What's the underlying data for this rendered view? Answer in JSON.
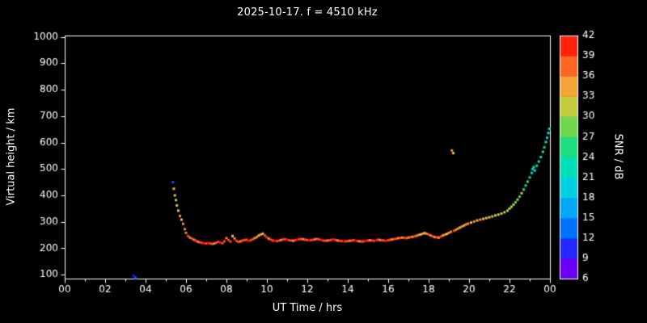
{
  "chart_data": {
    "type": "scatter",
    "title": "2025-10-17. f = 4510 kHz",
    "xlabel": "UT Time / hrs",
    "ylabel": "Virtual height / km",
    "background": "#000000",
    "frame_color": "#ffffff",
    "text_color": "#ffffff",
    "marker_size": 3,
    "xlim": [
      0,
      24
    ],
    "ylim": [
      85,
      1005
    ],
    "x_major_tick_hours": [
      0,
      2,
      4,
      6,
      8,
      10,
      12,
      14,
      16,
      18,
      20,
      22,
      24
    ],
    "x_tick_labels": [
      "00",
      "02",
      "04",
      "06",
      "08",
      "10",
      "12",
      "14",
      "16",
      "18",
      "20",
      "22",
      "00"
    ],
    "y_ticks": [
      100,
      200,
      300,
      400,
      500,
      600,
      700,
      800,
      900,
      1000
    ],
    "grid": false,
    "legend": "none",
    "colorbar": {
      "label": "SNR / dB",
      "min": 6,
      "max": 42,
      "ticks": [
        6,
        9,
        12,
        15,
        18,
        21,
        24,
        27,
        30,
        33,
        36,
        39,
        42
      ],
      "stops": [
        [
          6,
          "#9000f0"
        ],
        [
          9,
          "#4400ff"
        ],
        [
          12,
          "#0050ff"
        ],
        [
          15,
          "#0090ff"
        ],
        [
          18,
          "#00c0f0"
        ],
        [
          21,
          "#00e0d0"
        ],
        [
          24,
          "#00e0a0"
        ],
        [
          27,
          "#40d860"
        ],
        [
          30,
          "#a0d840"
        ],
        [
          33,
          "#e8c040"
        ],
        [
          36,
          "#ff8830"
        ],
        [
          39,
          "#ff4418"
        ],
        [
          42,
          "#ff0000"
        ]
      ]
    },
    "points_format": [
      "time_hours",
      "virtual_height_km",
      "snr_db"
    ],
    "points": [
      [
        3.4,
        95,
        9
      ],
      [
        3.5,
        88,
        12
      ],
      [
        5.35,
        450,
        12
      ],
      [
        5.4,
        425,
        33
      ],
      [
        5.45,
        400,
        33
      ],
      [
        5.5,
        382,
        30
      ],
      [
        5.55,
        362,
        33
      ],
      [
        5.62,
        342,
        33
      ],
      [
        5.7,
        322,
        36
      ],
      [
        5.78,
        308,
        33
      ],
      [
        5.86,
        292,
        36
      ],
      [
        5.94,
        272,
        36
      ],
      [
        6.0,
        258,
        36
      ],
      [
        6.1,
        246,
        39
      ],
      [
        6.2,
        240,
        36
      ],
      [
        6.3,
        236,
        39
      ],
      [
        6.4,
        232,
        36
      ],
      [
        6.5,
        228,
        39
      ],
      [
        6.6,
        224,
        36
      ],
      [
        6.7,
        222,
        39
      ],
      [
        6.8,
        220,
        39
      ],
      [
        6.9,
        219,
        42
      ],
      [
        7.0,
        218,
        39
      ],
      [
        7.1,
        220,
        42
      ],
      [
        7.2,
        218,
        39
      ],
      [
        7.3,
        216,
        39
      ],
      [
        7.4,
        218,
        36
      ],
      [
        7.5,
        221,
        39
      ],
      [
        7.6,
        224,
        39
      ],
      [
        7.7,
        221,
        42
      ],
      [
        7.8,
        219,
        39
      ],
      [
        7.9,
        226,
        39
      ],
      [
        8.0,
        238,
        36
      ],
      [
        8.1,
        231,
        39
      ],
      [
        8.2,
        225,
        39
      ],
      [
        8.3,
        246,
        33
      ],
      [
        8.4,
        237,
        36
      ],
      [
        8.5,
        228,
        39
      ],
      [
        8.6,
        224,
        39
      ],
      [
        8.7,
        226,
        36
      ],
      [
        8.8,
        229,
        39
      ],
      [
        8.9,
        231,
        39
      ],
      [
        9.0,
        232,
        39
      ],
      [
        9.1,
        228,
        42
      ],
      [
        9.2,
        230,
        39
      ],
      [
        9.3,
        234,
        39
      ],
      [
        9.4,
        238,
        36
      ],
      [
        9.5,
        242,
        36
      ],
      [
        9.6,
        248,
        33
      ],
      [
        9.7,
        252,
        36
      ],
      [
        9.8,
        255,
        33
      ],
      [
        9.9,
        248,
        39
      ],
      [
        10.0,
        241,
        39
      ],
      [
        10.1,
        236,
        36
      ],
      [
        10.2,
        232,
        39
      ],
      [
        10.3,
        229,
        39
      ],
      [
        10.4,
        228,
        42
      ],
      [
        10.5,
        227,
        39
      ],
      [
        10.6,
        229,
        39
      ],
      [
        10.7,
        231,
        36
      ],
      [
        10.8,
        233,
        39
      ],
      [
        10.9,
        234,
        39
      ],
      [
        11.0,
        232,
        42
      ],
      [
        11.1,
        230,
        39
      ],
      [
        11.2,
        229,
        39
      ],
      [
        11.3,
        228,
        36
      ],
      [
        11.4,
        230,
        39
      ],
      [
        11.5,
        232,
        42
      ],
      [
        11.6,
        234,
        39
      ],
      [
        11.7,
        235,
        39
      ],
      [
        11.8,
        234,
        36
      ],
      [
        11.9,
        232,
        39
      ],
      [
        12.0,
        231,
        39
      ],
      [
        12.1,
        230,
        42
      ],
      [
        12.2,
        231,
        39
      ],
      [
        12.3,
        232,
        39
      ],
      [
        12.4,
        234,
        36
      ],
      [
        12.5,
        235,
        39
      ],
      [
        12.6,
        233,
        39
      ],
      [
        12.7,
        231,
        42
      ],
      [
        12.8,
        229,
        39
      ],
      [
        12.9,
        228,
        39
      ],
      [
        13.0,
        229,
        36
      ],
      [
        13.1,
        230,
        39
      ],
      [
        13.2,
        232,
        39
      ],
      [
        13.3,
        233,
        42
      ],
      [
        13.4,
        231,
        39
      ],
      [
        13.5,
        229,
        36
      ],
      [
        13.6,
        228,
        39
      ],
      [
        13.7,
        227,
        39
      ],
      [
        13.8,
        226,
        42
      ],
      [
        13.9,
        226,
        39
      ],
      [
        14.0,
        227,
        39
      ],
      [
        14.1,
        228,
        36
      ],
      [
        14.2,
        229,
        39
      ],
      [
        14.3,
        230,
        39
      ],
      [
        14.4,
        228,
        42
      ],
      [
        14.5,
        227,
        39
      ],
      [
        14.6,
        226,
        36
      ],
      [
        14.7,
        225,
        39
      ],
      [
        14.8,
        226,
        39
      ],
      [
        14.9,
        228,
        42
      ],
      [
        15.0,
        229,
        39
      ],
      [
        15.1,
        230,
        36
      ],
      [
        15.2,
        229,
        39
      ],
      [
        15.3,
        228,
        39
      ],
      [
        15.4,
        230,
        42
      ],
      [
        15.5,
        232,
        39
      ],
      [
        15.6,
        231,
        36
      ],
      [
        15.7,
        230,
        39
      ],
      [
        15.8,
        229,
        39
      ],
      [
        15.9,
        228,
        42
      ],
      [
        16.0,
        230,
        39
      ],
      [
        16.1,
        232,
        39
      ],
      [
        16.2,
        233,
        36
      ],
      [
        16.3,
        235,
        39
      ],
      [
        16.4,
        236,
        39
      ],
      [
        16.5,
        238,
        36
      ],
      [
        16.6,
        239,
        39
      ],
      [
        16.7,
        240,
        36
      ],
      [
        16.8,
        239,
        39
      ],
      [
        16.9,
        238,
        39
      ],
      [
        17.0,
        240,
        36
      ],
      [
        17.1,
        242,
        39
      ],
      [
        17.2,
        243,
        36
      ],
      [
        17.3,
        245,
        39
      ],
      [
        17.4,
        247,
        36
      ],
      [
        17.5,
        250,
        36
      ],
      [
        17.6,
        252,
        33
      ],
      [
        17.7,
        255,
        36
      ],
      [
        17.8,
        257,
        33
      ],
      [
        17.9,
        255,
        36
      ],
      [
        18.0,
        252,
        39
      ],
      [
        18.1,
        248,
        36
      ],
      [
        18.2,
        245,
        39
      ],
      [
        18.3,
        242,
        36
      ],
      [
        18.4,
        241,
        39
      ],
      [
        18.5,
        240,
        36
      ],
      [
        18.6,
        244,
        39
      ],
      [
        18.7,
        248,
        36
      ],
      [
        18.8,
        251,
        36
      ],
      [
        18.9,
        254,
        33
      ],
      [
        19.0,
        258,
        36
      ],
      [
        19.1,
        262,
        36
      ],
      [
        19.15,
        570,
        36
      ],
      [
        19.22,
        560,
        33
      ],
      [
        19.25,
        266,
        39
      ],
      [
        19.35,
        270,
        36
      ],
      [
        19.45,
        274,
        36
      ],
      [
        19.55,
        278,
        33
      ],
      [
        19.65,
        282,
        36
      ],
      [
        19.75,
        286,
        33
      ],
      [
        19.85,
        290,
        36
      ],
      [
        19.95,
        293,
        36
      ],
      [
        20.1,
        297,
        33
      ],
      [
        20.25,
        301,
        36
      ],
      [
        20.4,
        305,
        33
      ],
      [
        20.55,
        308,
        36
      ],
      [
        20.7,
        311,
        33
      ],
      [
        20.85,
        314,
        33
      ],
      [
        21.0,
        317,
        33
      ],
      [
        21.15,
        320,
        30
      ],
      [
        21.3,
        324,
        33
      ],
      [
        21.45,
        327,
        33
      ],
      [
        21.6,
        331,
        30
      ],
      [
        21.75,
        336,
        33
      ],
      [
        21.9,
        342,
        30
      ],
      [
        22.0,
        350,
        33
      ],
      [
        22.1,
        357,
        30
      ],
      [
        22.2,
        365,
        30
      ],
      [
        22.3,
        374,
        27
      ],
      [
        22.4,
        384,
        30
      ],
      [
        22.5,
        395,
        27
      ],
      [
        22.6,
        408,
        30
      ],
      [
        22.7,
        422,
        27
      ],
      [
        22.8,
        437,
        24
      ],
      [
        22.9,
        452,
        27
      ],
      [
        23.0,
        468,
        24
      ],
      [
        23.1,
        485,
        24
      ],
      [
        23.15,
        500,
        21
      ],
      [
        23.2,
        507,
        24
      ],
      [
        23.25,
        494,
        21
      ],
      [
        23.35,
        512,
        24
      ],
      [
        23.45,
        528,
        21
      ],
      [
        23.55,
        545,
        24
      ],
      [
        23.65,
        565,
        21
      ],
      [
        23.72,
        582,
        24
      ],
      [
        23.8,
        602,
        21
      ],
      [
        23.86,
        618,
        24
      ],
      [
        23.92,
        636,
        21
      ],
      [
        23.97,
        652,
        24
      ]
    ]
  }
}
